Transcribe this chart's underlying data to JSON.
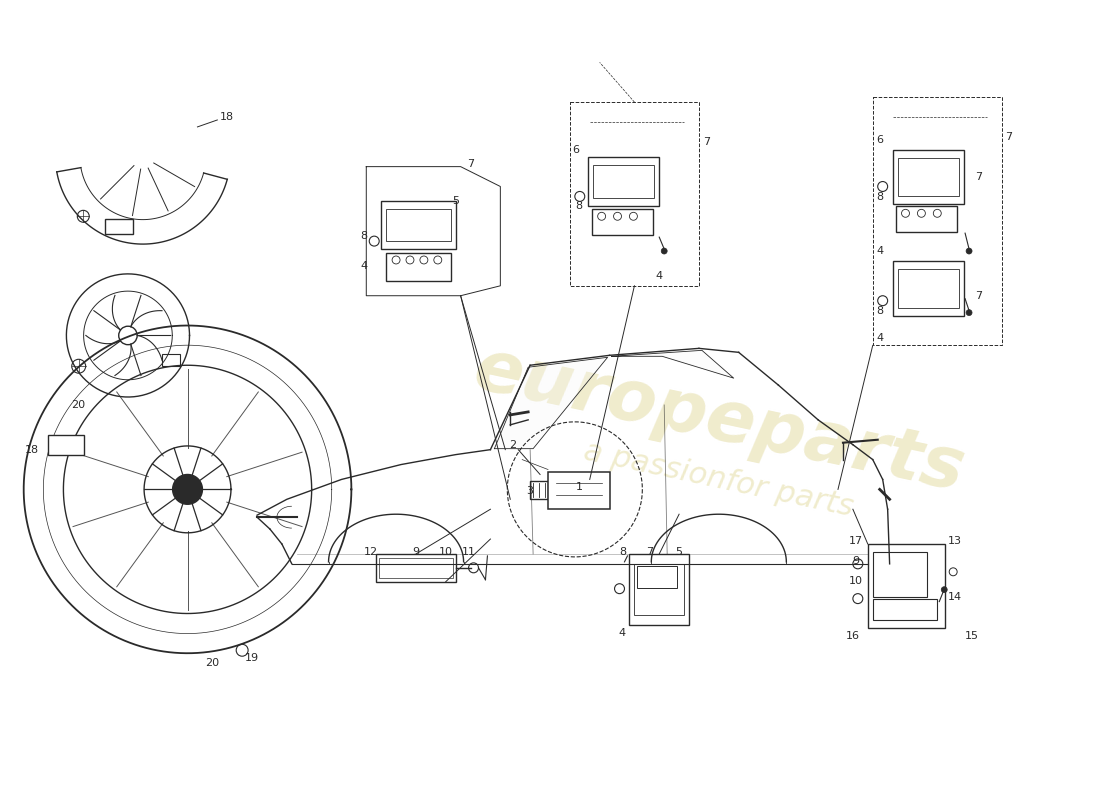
{
  "bg_color": "#ffffff",
  "line_color": "#2a2a2a",
  "watermark_color": "#d4c870",
  "watermark_alpha": 0.35,
  "figsize": [
    11.0,
    8.0
  ],
  "dpi": 100
}
